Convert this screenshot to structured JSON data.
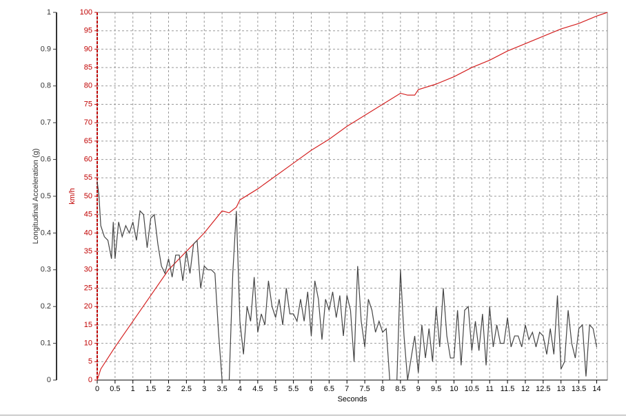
{
  "chart_data": {
    "type": "line",
    "xlabel": "Seconds",
    "ylabel": "Longitudinal Acceleration (g)",
    "y2label": "km/h",
    "xlim": [
      0,
      14.3
    ],
    "ylim": [
      0,
      1
    ],
    "y2lim": [
      0,
      100
    ],
    "xticks": [
      0,
      0.5,
      1,
      1.5,
      2,
      2.5,
      3,
      3.5,
      4,
      4.5,
      5,
      5.5,
      6,
      6.5,
      7,
      7.5,
      8,
      8.5,
      9,
      9.5,
      10,
      10.5,
      11,
      11.5,
      12,
      12.5,
      13,
      13.5,
      14
    ],
    "yticks": [
      0,
      0.1,
      0.2,
      0.3,
      0.4,
      0.5,
      0.6,
      0.7,
      0.8,
      0.9,
      1
    ],
    "y2ticks": [
      0,
      5,
      10,
      15,
      20,
      25,
      30,
      35,
      40,
      45,
      50,
      55,
      60,
      65,
      70,
      75,
      80,
      85,
      90,
      95,
      100
    ],
    "grid": true,
    "series": [
      {
        "color": "#d42020",
        "axis": "y2",
        "x": [
          0,
          0.1,
          0.5,
          1,
          1.5,
          2,
          2.5,
          3,
          3.5,
          3.7,
          3.9,
          4,
          4.5,
          5,
          5.5,
          6,
          6.5,
          7,
          7.5,
          8,
          8.5,
          8.7,
          8.9,
          9,
          9.5,
          10,
          10.5,
          11,
          11.5,
          12,
          12.5,
          13,
          13.5,
          14,
          14.3
        ],
        "values": [
          0,
          3,
          9,
          16,
          23,
          30,
          35,
          40,
          46,
          45.5,
          47,
          49,
          52,
          55.5,
          59,
          62.5,
          65.5,
          69,
          72,
          75,
          78,
          77.5,
          77.5,
          79,
          80.5,
          82.5,
          85,
          87,
          89.5,
          91.5,
          93.5,
          95.5,
          97,
          99,
          100
        ]
      },
      {
        "color": "#444444",
        "axis": "y",
        "x": [
          0,
          0.05,
          0.1,
          0.2,
          0.3,
          0.4,
          0.45,
          0.5,
          0.6,
          0.7,
          0.8,
          0.9,
          1.0,
          1.1,
          1.2,
          1.3,
          1.4,
          1.5,
          1.6,
          1.7,
          1.8,
          1.9,
          2.0,
          2.1,
          2.2,
          2.3,
          2.4,
          2.5,
          2.6,
          2.7,
          2.8,
          2.9,
          3.0,
          3.1,
          3.2,
          3.3,
          3.4,
          3.5,
          3.6,
          3.7,
          3.8,
          3.9,
          4.0,
          4.1,
          4.2,
          4.3,
          4.4,
          4.5,
          4.6,
          4.7,
          4.8,
          4.9,
          5.0,
          5.1,
          5.2,
          5.3,
          5.4,
          5.5,
          5.6,
          5.7,
          5.8,
          5.9,
          6.0,
          6.1,
          6.2,
          6.3,
          6.4,
          6.5,
          6.6,
          6.7,
          6.8,
          6.9,
          7.0,
          7.1,
          7.2,
          7.3,
          7.4,
          7.5,
          7.6,
          7.7,
          7.8,
          7.9,
          8.0,
          8.1,
          8.2,
          8.3,
          8.4,
          8.5,
          8.6,
          8.7,
          8.8,
          8.9,
          9.0,
          9.1,
          9.2,
          9.3,
          9.4,
          9.5,
          9.6,
          9.7,
          9.8,
          9.9,
          10.0,
          10.1,
          10.2,
          10.3,
          10.4,
          10.5,
          10.6,
          10.7,
          10.8,
          10.9,
          11.0,
          11.1,
          11.2,
          11.3,
          11.4,
          11.5,
          11.6,
          11.7,
          11.8,
          11.9,
          12.0,
          12.1,
          12.2,
          12.3,
          12.4,
          12.5,
          12.6,
          12.7,
          12.8,
          12.9,
          13.0,
          13.1,
          13.2,
          13.3,
          13.4,
          13.5,
          13.6,
          13.7,
          13.8,
          13.9,
          14.0
        ],
        "values": [
          0.54,
          0.5,
          0.42,
          0.39,
          0.38,
          0.33,
          0.43,
          0.33,
          0.43,
          0.39,
          0.42,
          0.4,
          0.43,
          0.38,
          0.46,
          0.45,
          0.36,
          0.44,
          0.45,
          0.37,
          0.31,
          0.29,
          0.33,
          0.28,
          0.34,
          0.34,
          0.27,
          0.35,
          0.29,
          0.37,
          0.38,
          0.25,
          0.31,
          0.3,
          0.3,
          0.29,
          0.13,
          0,
          0,
          0,
          0.29,
          0.46,
          0.16,
          0.07,
          0.2,
          0.16,
          0.28,
          0.13,
          0.18,
          0.15,
          0.27,
          0.2,
          0.17,
          0.22,
          0.15,
          0.25,
          0.18,
          0.18,
          0.16,
          0.22,
          0.16,
          0.24,
          0.12,
          0.27,
          0.22,
          0.11,
          0.22,
          0.19,
          0.24,
          0.17,
          0.23,
          0.12,
          0.23,
          0.19,
          0.05,
          0.31,
          0.16,
          0.09,
          0.22,
          0.19,
          0.13,
          0.16,
          0.13,
          0.14,
          0,
          0,
          0,
          0.3,
          0.12,
          0,
          0.06,
          0.12,
          0.02,
          0.15,
          0.06,
          0.14,
          0.05,
          0.2,
          0.09,
          0.25,
          0.12,
          0.06,
          0.06,
          0.19,
          0.04,
          0.19,
          0.2,
          0.08,
          0.16,
          0.08,
          0.18,
          0.04,
          0.2,
          0.09,
          0.15,
          0.1,
          0.1,
          0.17,
          0.09,
          0.12,
          0.12,
          0.09,
          0.15,
          0.11,
          0.13,
          0.09,
          0.13,
          0.12,
          0.07,
          0.14,
          0.07,
          0.23,
          0.03,
          0.05,
          0.19,
          0.1,
          0.06,
          0.14,
          0.15,
          0.01,
          0.15,
          0.14,
          0.09
        ]
      }
    ]
  }
}
